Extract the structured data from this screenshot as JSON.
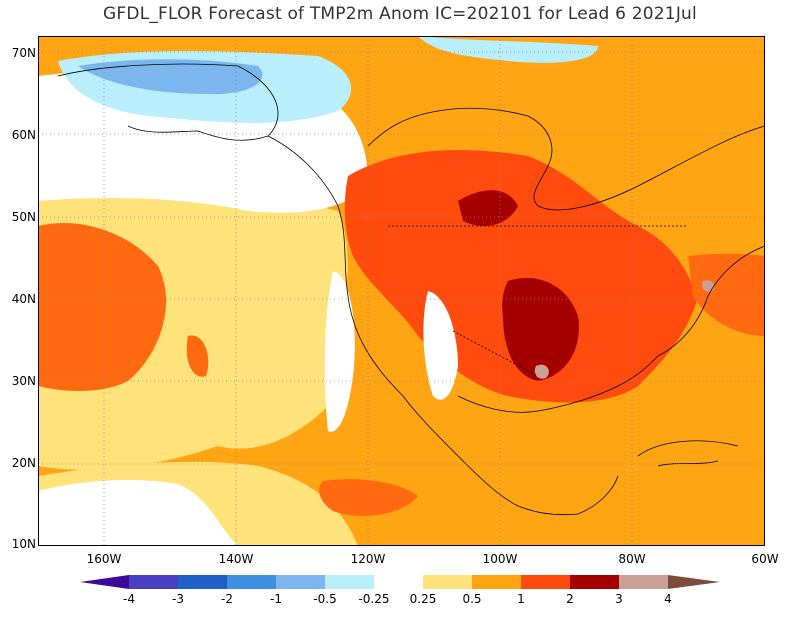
{
  "title": "GFDL_FLOR Forecast of TMP2m Anom IC=202101 for Lead 6 2021Jul",
  "map": {
    "projection": "equirectangular",
    "lon_range": [
      -170,
      -60
    ],
    "lat_range": [
      10,
      72
    ],
    "lat_labels": [
      "70N",
      "60N",
      "50N",
      "40N",
      "30N",
      "20N",
      "10N"
    ],
    "lon_labels": [
      "160W",
      "140W",
      "120W",
      "100W",
      "80W",
      "60W"
    ],
    "gridlines": "dotted"
  },
  "legend": {
    "labels": [
      "-4",
      "-3",
      "-2",
      "-1",
      "-0.5",
      "-0.25",
      "0.25",
      "0.5",
      "1",
      "2",
      "3",
      "4"
    ],
    "colors": [
      "#3b0a9a",
      "#4a3fc2",
      "#1f5fc8",
      "#3f8fe0",
      "#7bb7ee",
      "#b9eefc",
      "#ffffff",
      "#ffe27a",
      "#ffa514",
      "#ff4c0e",
      "#a50000",
      "#c9a096",
      "#7d4c3c"
    ]
  },
  "anomaly_regions": [
    {
      "name": "northeast-pacific",
      "level": "0.5 to 1"
    },
    {
      "name": "western-canada-alaska-coast",
      "level": "-0.25 to 0.25"
    },
    {
      "name": "alaska-arctic",
      "level": "-1 to -0.25"
    },
    {
      "name": "central-canada",
      "level": "1 to 2"
    },
    {
      "name": "central-us",
      "level": "2 to 3"
    },
    {
      "name": "gulf-coast-spot",
      "level": "3 to 4"
    },
    {
      "name": "eastern-us",
      "level": "1 to 2"
    },
    {
      "name": "southwest-us",
      "level": "-0.25 to 0.25"
    }
  ]
}
